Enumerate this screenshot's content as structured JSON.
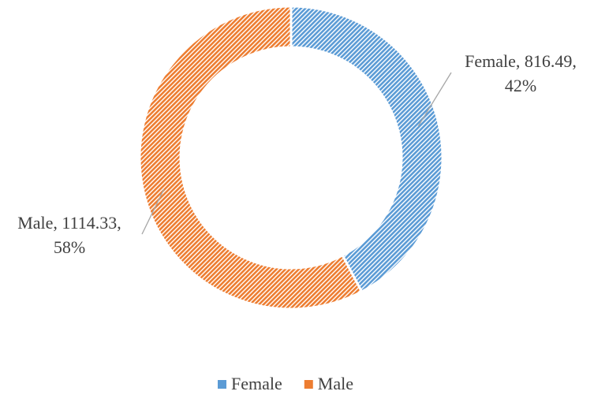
{
  "chart_data": {
    "type": "donut",
    "categories": [
      "Female",
      "Male"
    ],
    "values": [
      816.49,
      1114.33
    ],
    "value_labels": [
      [
        "Female, 816.49,",
        "42%"
      ],
      [
        "Male, 1114.33,",
        "58%"
      ]
    ],
    "colors": [
      "#5b9bd5",
      "#ed7d31"
    ],
    "hatched": true,
    "legend": "bottom"
  }
}
